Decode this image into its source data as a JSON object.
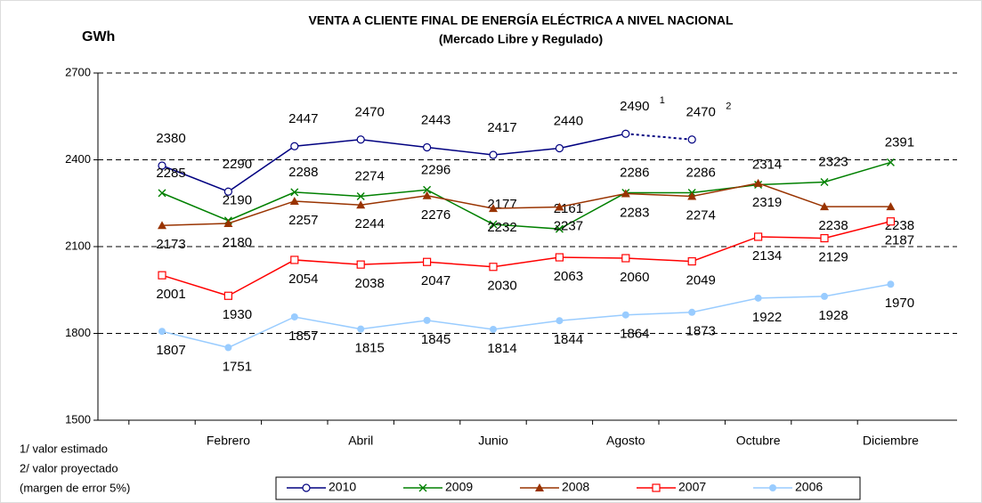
{
  "chart_data": {
    "type": "line",
    "title": "VENTA A CLIENTE FINAL DE ENERGÍA ELÉCTRICA A NIVEL NACIONAL",
    "subtitle": "(Mercado Libre y Regulado)",
    "y_label": "GWh",
    "categories": [
      null,
      "Febrero",
      null,
      "Abril",
      null,
      "Junio",
      null,
      "Agosto",
      null,
      "Octubre",
      null,
      "Diciembre"
    ],
    "ylim": [
      1500,
      2700
    ],
    "yticks": [
      1500,
      1800,
      2100,
      2400,
      2700
    ],
    "grid": true,
    "series": [
      {
        "name": "2010",
        "color": "#000080",
        "marker": "open-circle",
        "dashed_last_segment": true,
        "values": [
          2380,
          2290,
          2447,
          2470,
          2443,
          2417,
          2440,
          2490,
          2470,
          null,
          null,
          null
        ]
      },
      {
        "name": "2009",
        "color": "#008000",
        "marker": "x",
        "values": [
          2285,
          2190,
          2288,
          2274,
          2296,
          2177,
          2161,
          2286,
          2286,
          2314,
          2323,
          2391
        ]
      },
      {
        "name": "2008",
        "color": "#993300",
        "marker": "filled-triangle",
        "values": [
          2173,
          2180,
          2257,
          2244,
          2276,
          2232,
          2237,
          2283,
          2274,
          2319,
          2238,
          2238
        ]
      },
      {
        "name": "2007",
        "color": "#ff0000",
        "marker": "open-square",
        "values": [
          2001,
          1930,
          2054,
          2038,
          2047,
          2030,
          2063,
          2060,
          2049,
          2134,
          2129,
          2187
        ]
      },
      {
        "name": "2006",
        "color": "#99ccff",
        "marker": "filled-circle",
        "values": [
          1807,
          1751,
          1857,
          1815,
          1845,
          1814,
          1844,
          1864,
          1873,
          1922,
          1928,
          1970
        ]
      }
    ],
    "annotations": [
      "1",
      "2"
    ],
    "footnotes": [
      "1/ valor estimado",
      "2/ valor proyectado",
      "(margen de error 5%)"
    ]
  }
}
